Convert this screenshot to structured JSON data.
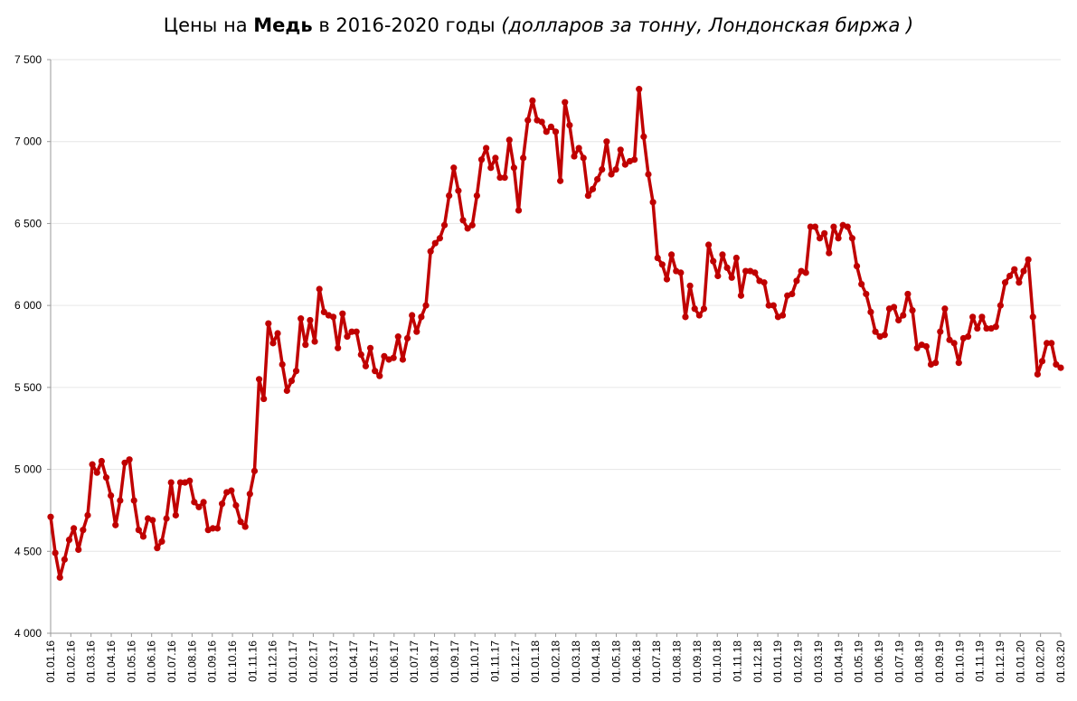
{
  "title": {
    "prefix": "Цены на ",
    "metal": "Медь",
    "years": " в 2016-2020 годы ",
    "units": "(долларов за тонну, Лондонская биржа )"
  },
  "colors": {
    "line": "#c00000",
    "axis": "#999999",
    "grid": "#e6e6e6"
  },
  "chart_data": {
    "type": "line",
    "title": "Цены на Медь в 2016-2020 годы (долларов за тонну, Лондонская биржа )",
    "xlabel": "",
    "ylabel": "",
    "ylim": [
      4000,
      7500
    ],
    "grid": true,
    "legend": "none",
    "yticks": [
      {
        "value": 4000,
        "label": "4 000"
      },
      {
        "value": 4500,
        "label": "4 500"
      },
      {
        "value": 5000,
        "label": "5 000"
      },
      {
        "value": 5500,
        "label": "5 500"
      },
      {
        "value": 6000,
        "label": "6 000"
      },
      {
        "value": 6500,
        "label": "6 500"
      },
      {
        "value": 7000,
        "label": "7 000"
      },
      {
        "value": 7500,
        "label": "7 500"
      }
    ],
    "xticks": [
      "01.01.16",
      "01.02.16",
      "01.03.16",
      "01.04.16",
      "01.05.16",
      "01.06.16",
      "01.07.16",
      "01.08.16",
      "01.09.16",
      "01.10.16",
      "01.11.16",
      "01.12.16",
      "01.01.17",
      "01.02.17",
      "01.03.17",
      "01.04.17",
      "01.05.17",
      "01.06.17",
      "01.07.17",
      "01.08.17",
      "01.09.17",
      "01.10.17",
      "01.11.17",
      "01.12.17",
      "01.01.18",
      "01.02.18",
      "01.03.18",
      "01.04.18",
      "01.05.18",
      "01.06.18",
      "01.07.18",
      "01.08.18",
      "01.09.18",
      "01.10.18",
      "01.11.18",
      "01.12.18",
      "01.01.19",
      "01.02.19",
      "01.03.19",
      "01.04.19",
      "01.05.19",
      "01.06.19",
      "01.07.19",
      "01.08.19",
      "01.09.19",
      "01.10.19",
      "01.11.19",
      "01.12.19",
      "01.01.20",
      "01.02.20",
      "01.03.20"
    ],
    "series": [
      {
        "name": "Медь",
        "values": [
          4710,
          4490,
          4340,
          4450,
          4570,
          4640,
          4510,
          4630,
          4720,
          5030,
          4980,
          5050,
          4950,
          4840,
          4660,
          4810,
          5040,
          5060,
          4810,
          4630,
          4590,
          4700,
          4690,
          4520,
          4560,
          4700,
          4920,
          4720,
          4920,
          4920,
          4930,
          4800,
          4770,
          4800,
          4630,
          4640,
          4640,
          4790,
          4860,
          4870,
          4780,
          4680,
          4650,
          4850,
          4990,
          5550,
          5430,
          5890,
          5770,
          5830,
          5640,
          5480,
          5540,
          5600,
          5920,
          5760,
          5910,
          5780,
          6100,
          5960,
          5940,
          5930,
          5740,
          5950,
          5810,
          5840,
          5840,
          5700,
          5630,
          5740,
          5600,
          5570,
          5690,
          5670,
          5680,
          5810,
          5670,
          5800,
          5940,
          5840,
          5930,
          6000,
          6330,
          6380,
          6410,
          6490,
          6670,
          6840,
          6700,
          6520,
          6470,
          6490,
          6670,
          6890,
          6960,
          6840,
          6900,
          6780,
          6780,
          7010,
          6840,
          6580,
          6900,
          7130,
          7250,
          7130,
          7120,
          7060,
          7090,
          7060,
          6760,
          7240,
          7100,
          6910,
          6960,
          6900,
          6670,
          6710,
          6770,
          6830,
          7000,
          6800,
          6830,
          6950,
          6860,
          6880,
          6890,
          7320,
          7030,
          6800,
          6630,
          6290,
          6250,
          6160,
          6310,
          6210,
          6200,
          5930,
          6120,
          5980,
          5940,
          5980,
          6370,
          6270,
          6180,
          6310,
          6230,
          6170,
          6290,
          6060,
          6210,
          6210,
          6200,
          6150,
          6140,
          6000,
          6000,
          5930,
          5940,
          6060,
          6070,
          6150,
          6210,
          6200,
          6480,
          6480,
          6410,
          6440,
          6320,
          6480,
          6410,
          6490,
          6480,
          6410,
          6240,
          6130,
          6070,
          5960,
          5840,
          5810,
          5820,
          5980,
          5990,
          5910,
          5940,
          6070,
          5970,
          5740,
          5760,
          5750,
          5640,
          5650,
          5840,
          5980,
          5790,
          5770,
          5650,
          5800,
          5810,
          5930,
          5860,
          5930,
          5860,
          5860,
          5870,
          6000,
          6140,
          6180,
          6220,
          6140,
          6210,
          6280,
          5930,
          5580,
          5660,
          5770,
          5770,
          5640,
          5620
        ]
      }
    ]
  }
}
